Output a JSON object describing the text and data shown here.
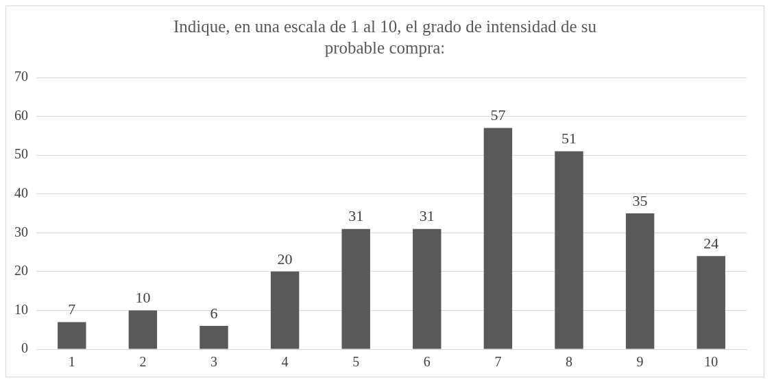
{
  "chart_data": {
    "type": "bar",
    "title": "Indique, en una escala de 1 al 10, el grado de intensidad de su probable compra:",
    "categories": [
      "1",
      "2",
      "3",
      "4",
      "5",
      "6",
      "7",
      "8",
      "9",
      "10"
    ],
    "values": [
      7,
      10,
      6,
      20,
      31,
      31,
      57,
      51,
      35,
      24
    ],
    "color": "#595959",
    "ylim": [
      0,
      70
    ],
    "yticks": [
      0,
      10,
      20,
      30,
      40,
      50,
      60,
      70
    ],
    "grid": "y",
    "data_labels": true,
    "legend": false
  }
}
